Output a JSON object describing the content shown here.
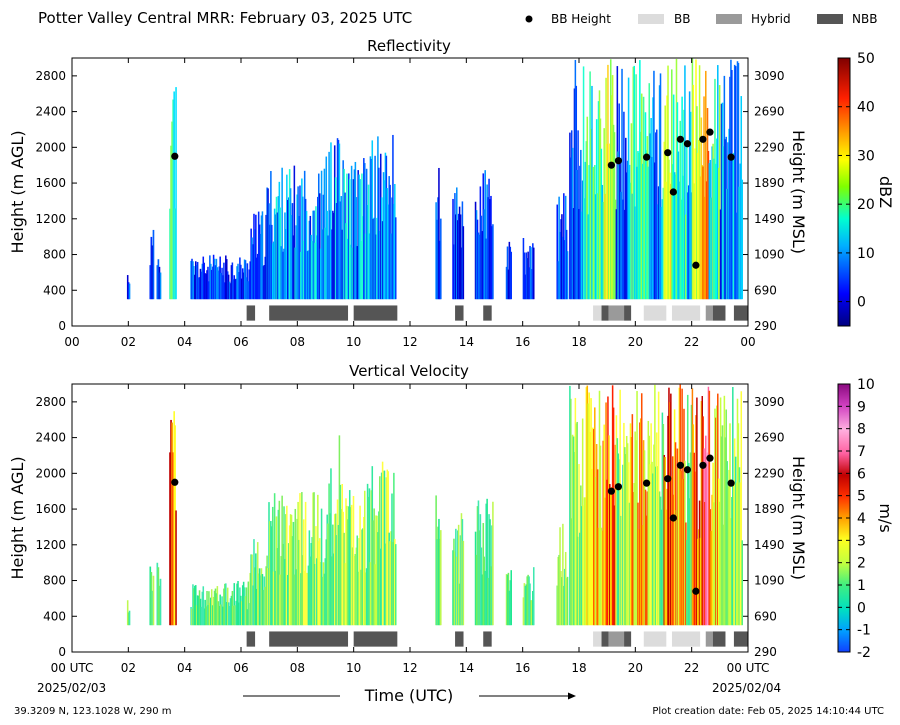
{
  "header": {
    "title": "Potter Valley Central MRR:  February 03, 2025 UTC",
    "legend": [
      {
        "label": "BB Height",
        "kind": "dot",
        "color": "#000000"
      },
      {
        "label": "BB",
        "kind": "box",
        "color": "#dcdcdc"
      },
      {
        "label": "Hybrid",
        "kind": "box",
        "color": "#9a9a9a"
      },
      {
        "label": "NBB",
        "kind": "box",
        "color": "#555555"
      }
    ]
  },
  "footer": {
    "location": "39.3209 N, 123.1028 W, 290 m",
    "created": "Plot creation date: Feb 05, 2025 14:10:44 UTC",
    "xlabel": "Time (UTC)",
    "start_date": "2025/02/03",
    "end_date": "2025/02/04"
  },
  "chart_data": [
    {
      "type": "heatmap",
      "title": "Reflectivity",
      "ylabel": "Height (m AGL)",
      "y2label": "Height (m MSL)",
      "colorbar_label": "dBZ",
      "xlim": [
        0,
        24
      ],
      "ylim": [
        0,
        3000
      ],
      "xticks": [
        "00",
        "02",
        "04",
        "06",
        "08",
        "10",
        "12",
        "14",
        "16",
        "18",
        "20",
        "22",
        "00"
      ],
      "yticks": [
        0,
        400,
        800,
        1200,
        1600,
        2000,
        2400,
        2800
      ],
      "y2ticks": [
        290,
        690,
        1090,
        1490,
        1890,
        2290,
        2690,
        3090
      ],
      "colorbar_ticks": [
        "0",
        "10",
        "20",
        "30",
        "40",
        "50"
      ],
      "colorbar_range": [
        -5,
        50
      ]
    },
    {
      "type": "heatmap",
      "title": "Vertical Velocity",
      "ylabel": "Height (m AGL)",
      "y2label": "Height (m MSL)",
      "colorbar_label": "m/s",
      "xlim": [
        0,
        24
      ],
      "ylim": [
        0,
        3000
      ],
      "xticks": [
        "00 UTC",
        "02",
        "04",
        "06",
        "08",
        "10",
        "12",
        "14",
        "16",
        "18",
        "20",
        "22",
        "00 UTC"
      ],
      "yticks": [
        0,
        400,
        800,
        1200,
        1600,
        2000,
        2400,
        2800
      ],
      "y2ticks": [
        290,
        690,
        1090,
        1490,
        1890,
        2290,
        2690,
        3090
      ],
      "colorbar_ticks": [
        "-2",
        "-1",
        "0",
        "1",
        "2",
        "3",
        "4",
        "5",
        "6",
        "7",
        "8",
        "9",
        "10"
      ],
      "colorbar_range": [
        -2,
        10
      ]
    }
  ],
  "bb_points": [
    {
      "t": 3.65,
      "h": 1900
    },
    {
      "t": 19.15,
      "h": 1800
    },
    {
      "t": 19.4,
      "h": 1850
    },
    {
      "t": 20.4,
      "h": 1890
    },
    {
      "t": 21.15,
      "h": 1940
    },
    {
      "t": 21.35,
      "h": 1500
    },
    {
      "t": 21.6,
      "h": 2090
    },
    {
      "t": 21.85,
      "h": 2040
    },
    {
      "t": 22.15,
      "h": 680
    },
    {
      "t": 22.4,
      "h": 2090
    },
    {
      "t": 22.65,
      "h": 2170
    },
    {
      "t": 23.4,
      "h": 1890
    }
  ],
  "bb_bars": [
    {
      "t0": 6.2,
      "t1": 6.5,
      "kind": "NBB"
    },
    {
      "t0": 7.0,
      "t1": 9.8,
      "kind": "NBB"
    },
    {
      "t0": 10.0,
      "t1": 11.55,
      "kind": "NBB"
    },
    {
      "t0": 13.6,
      "t1": 13.9,
      "kind": "NBB"
    },
    {
      "t0": 14.6,
      "t1": 14.9,
      "kind": "NBB"
    },
    {
      "t0": 18.5,
      "t1": 18.8,
      "kind": "BB"
    },
    {
      "t0": 18.8,
      "t1": 19.05,
      "kind": "NBB"
    },
    {
      "t0": 19.05,
      "t1": 19.6,
      "kind": "Hybrid"
    },
    {
      "t0": 19.6,
      "t1": 19.85,
      "kind": "NBB"
    },
    {
      "t0": 20.3,
      "t1": 21.1,
      "kind": "BB"
    },
    {
      "t0": 21.3,
      "t1": 22.3,
      "kind": "BB"
    },
    {
      "t0": 22.5,
      "t1": 22.75,
      "kind": "Hybrid"
    },
    {
      "t0": 22.75,
      "t1": 23.2,
      "kind": "NBB"
    },
    {
      "t0": 23.5,
      "t1": 24.0,
      "kind": "NBB"
    }
  ]
}
